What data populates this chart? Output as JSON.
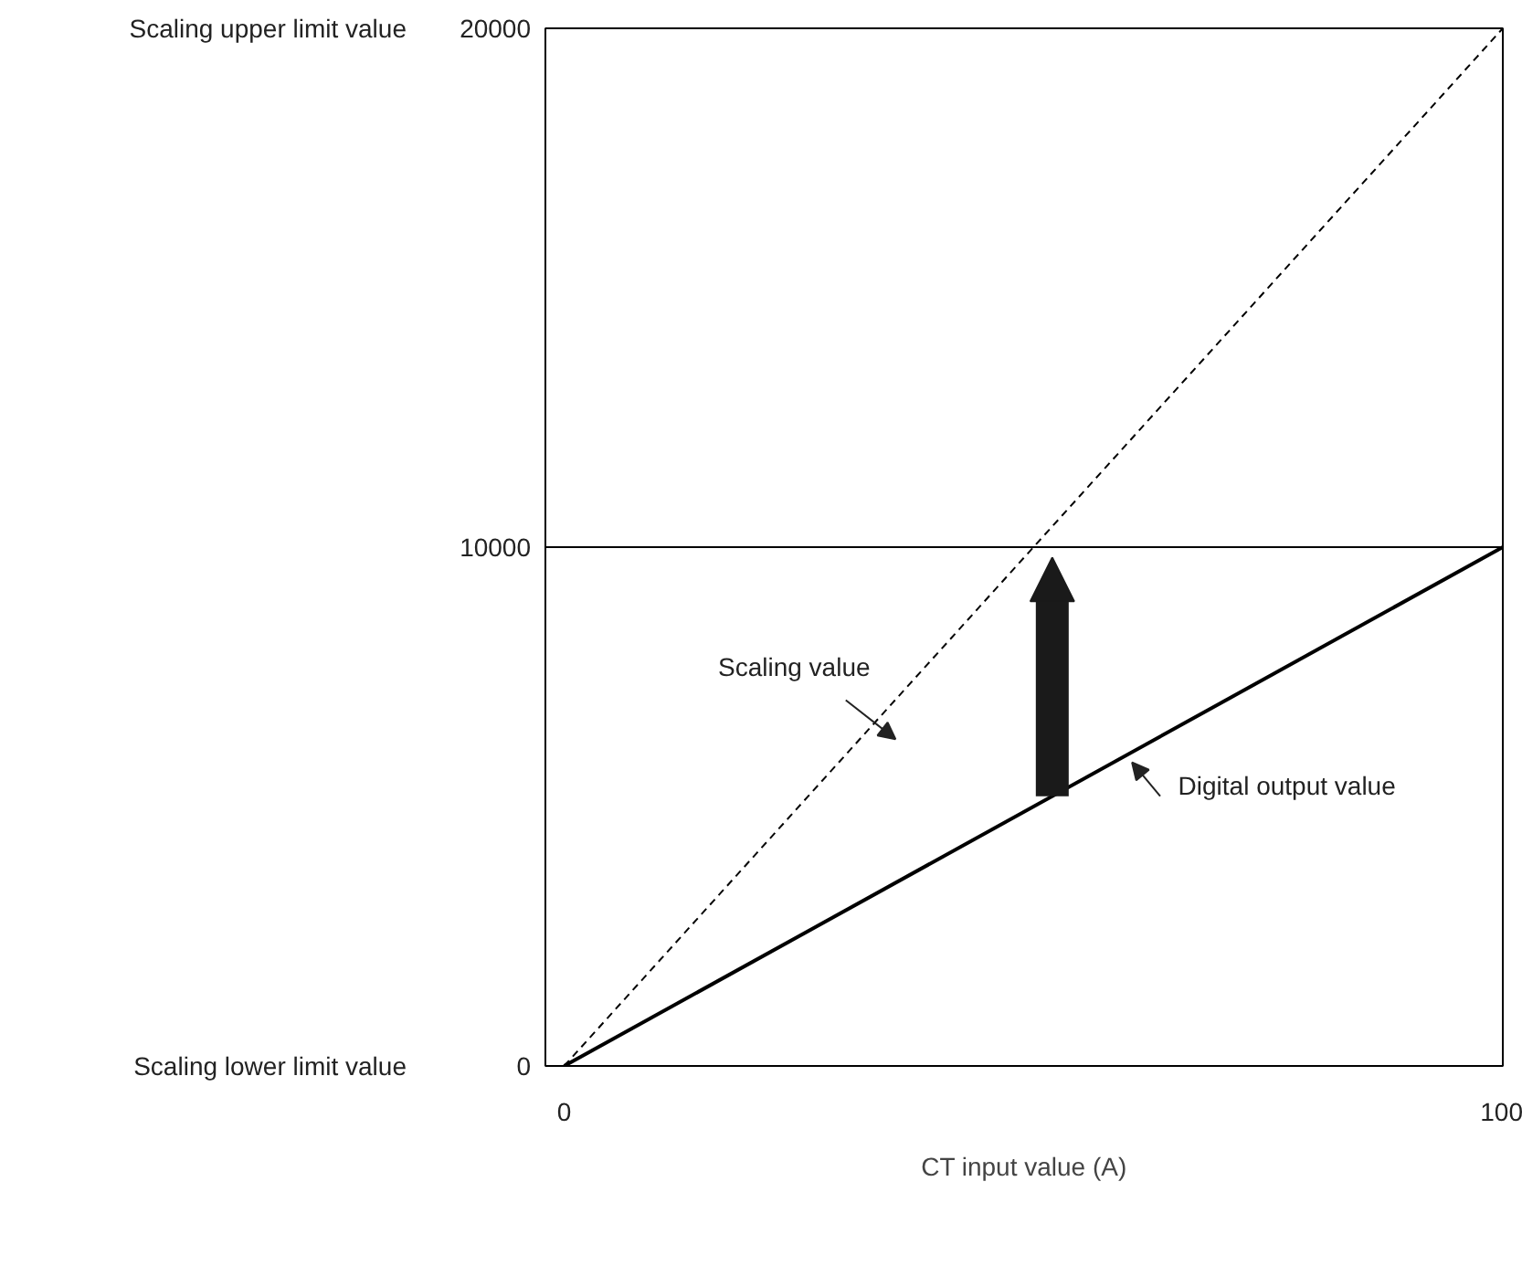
{
  "chart_data": {
    "type": "line",
    "xlabel": "CT input value (A)",
    "x": [
      0,
      100
    ],
    "series": [
      {
        "name": "Scaling value",
        "color": "#000000",
        "values": [
          0,
          20000
        ],
        "line_style": "dashed"
      },
      {
        "name": "Digital output value",
        "color": "#000000",
        "values": [
          0,
          10000
        ],
        "line_style": "solid"
      }
    ],
    "xlim": [
      -2,
      100
    ],
    "ylim": [
      0,
      20000
    ],
    "xticks": [
      0,
      100
    ],
    "yticks": [
      0,
      10000,
      20000
    ],
    "ref_lines": [
      {
        "axis": "y",
        "value": 10000,
        "color": "#000000"
      }
    ],
    "annotations": [
      "Scaling upper limit value",
      "Scaling lower limit value"
    ],
    "grid": false,
    "marker": "none"
  }
}
